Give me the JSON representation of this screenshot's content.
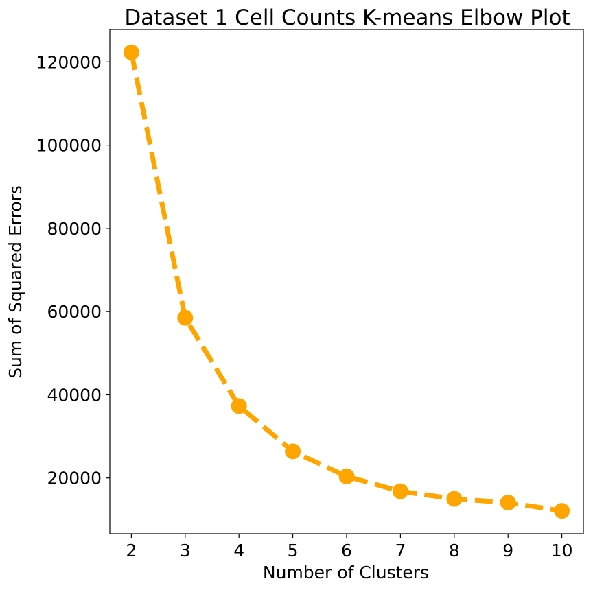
{
  "chart_data": {
    "type": "line",
    "title": "Dataset 1 Cell Counts K-means Elbow Plot",
    "xlabel": "Number of Clusters",
    "ylabel": "Sum of Squared Errors",
    "x": [
      2,
      3,
      4,
      5,
      6,
      7,
      8,
      9,
      10
    ],
    "series": [
      {
        "values": [
          122300,
          58500,
          37300,
          26400,
          20400,
          16800,
          15000,
          14100,
          12100
        ],
        "color": "#FFA500",
        "line_style": "dashed",
        "marker": "circle"
      }
    ],
    "xlim": [
      1.6,
      10.4
    ],
    "ylim": [
      6600,
      127800
    ],
    "xticks": [
      2,
      3,
      4,
      5,
      6,
      7,
      8,
      9,
      10
    ],
    "yticks": [
      20000,
      40000,
      60000,
      80000,
      100000,
      120000
    ],
    "grid": false,
    "legend": "none"
  }
}
